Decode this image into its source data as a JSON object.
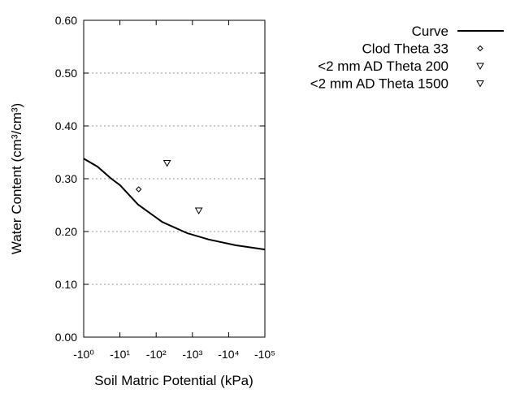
{
  "chart_data": {
    "type": "line",
    "title": "",
    "xlabel": "Soil Matric Potential (kPa)",
    "ylabel": "Water Content (cm³/cm³)",
    "x_scale": "log (negative, magnitude increasing to the right)",
    "xlim": [
      -1,
      -100000
    ],
    "ylim": [
      0.0,
      0.6
    ],
    "x_ticks": [
      -1,
      -10,
      -100,
      -1000,
      -10000,
      -100000
    ],
    "x_tick_labels": [
      "-10⁰",
      "-10¹",
      "-10²",
      "-10³",
      "-10⁴",
      "-10⁵"
    ],
    "y_ticks": [
      0.0,
      0.1,
      0.2,
      0.3,
      0.4,
      0.5,
      0.6
    ],
    "y_tick_labels": [
      "0.00",
      "0.10",
      "0.20",
      "0.30",
      "0.40",
      "0.50",
      "0.60"
    ],
    "grid": "horizontal dotted",
    "legend_placement": "top-right outside",
    "series": [
      {
        "name": "Curve",
        "kind": "line",
        "color": "#000000",
        "x": [
          -1,
          -2.4,
          -5.8,
          -10,
          -31.6,
          -148,
          -708,
          -2818,
          -15500,
          -100000
        ],
        "y": [
          0.338,
          0.323,
          0.3,
          0.288,
          0.251,
          0.218,
          0.197,
          0.185,
          0.174,
          0.166
        ]
      },
      {
        "name": "Clod Theta 33",
        "kind": "diamond",
        "color": "#000000",
        "x": [
          -33
        ],
        "y": [
          0.28
        ]
      },
      {
        "name": "<2 mm AD Theta 200",
        "kind": "triangle-down",
        "color": "#000000",
        "x": [
          -200
        ],
        "y": [
          0.33
        ]
      },
      {
        "name": "<2 mm AD Theta 1500",
        "kind": "triangle-down",
        "color": "#000000",
        "x": [
          -1500
        ],
        "y": [
          0.24
        ]
      }
    ]
  }
}
